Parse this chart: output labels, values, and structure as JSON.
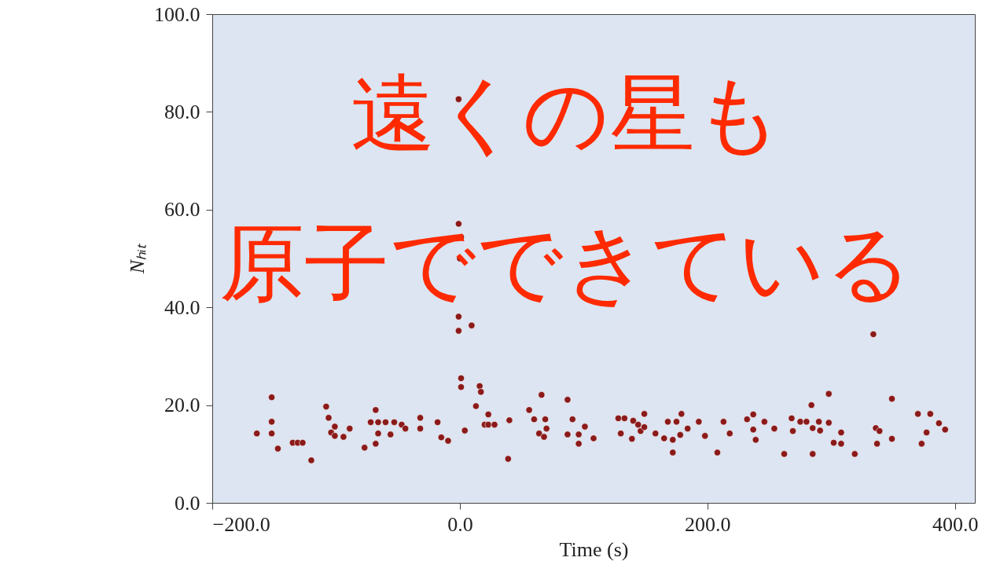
{
  "chart_data": {
    "type": "scatter",
    "xlabel": "Time (s)",
    "ylabel": "Nₕᵢₜ",
    "annotations": [
      "遠くの星も",
      "原子でできている"
    ],
    "xlim": [
      -200,
      416
    ],
    "ylim": [
      0,
      100
    ],
    "xticks": [
      {
        "value": -200,
        "label": "−200.0"
      },
      {
        "value": 0,
        "label": "0.0"
      },
      {
        "value": 200,
        "label": "200.0"
      },
      {
        "value": 400,
        "label": "400.0"
      }
    ],
    "yticks": [
      {
        "value": 0,
        "label": "0.0"
      },
      {
        "value": 20,
        "label": "20.0"
      },
      {
        "value": 40,
        "label": "40.0"
      },
      {
        "value": 60,
        "label": "60.0"
      },
      {
        "value": 80,
        "label": "80.0"
      },
      {
        "value": 100,
        "label": "100.0"
      }
    ],
    "grid": false,
    "marker": "circle",
    "series": [
      {
        "color": "#8b1a1a",
        "x": [
          -164,
          -152,
          -152,
          -152,
          -147,
          -135,
          -131,
          -127,
          -120,
          -108,
          -106,
          -101,
          -104,
          -101,
          -94,
          -89,
          -77,
          -68,
          -68,
          -72,
          -66,
          -60,
          -53,
          -47,
          -66,
          -56,
          -44,
          -32,
          -32,
          -18,
          -15,
          -9.5,
          -1,
          -1,
          1,
          0,
          -1,
          9.5,
          -1,
          1,
          1,
          16,
          17,
          13,
          23,
          20,
          23,
          28,
          4,
          40,
          39,
          56,
          66,
          60,
          69,
          70,
          64,
          68,
          87,
          91,
          101,
          87,
          96,
          96,
          108,
          128,
          133,
          130,
          139,
          140,
          144,
          146,
          149,
          149,
          158,
          165,
          172,
          172,
          168,
          175,
          179,
          178,
          184,
          193,
          198,
          208,
          213,
          218,
          232,
          237,
          237,
          239,
          246,
          254,
          262,
          268,
          269,
          275,
          280,
          284,
          285,
          285,
          290,
          291,
          298,
          298,
          302,
          308,
          308,
          319,
          334,
          336,
          339,
          337,
          349,
          349,
          370,
          380,
          377,
          373,
          387,
          392
        ],
        "values": [
          14.2,
          21.6,
          16.6,
          14.2,
          11.1,
          12.3,
          12.3,
          12.3,
          8.7,
          19.7,
          17.4,
          15.6,
          14.4,
          13.7,
          13.5,
          15.2,
          11.3,
          12.1,
          19.0,
          16.5,
          16.5,
          16.5,
          16.5,
          16.0,
          14.2,
          14.0,
          15.2,
          17.4,
          15.2,
          16.5,
          13.4,
          12.7,
          82.6,
          57.1,
          54.4,
          50.0,
          38.1,
          36.3,
          35.2,
          25.5,
          23.7,
          23.9,
          22.7,
          19.8,
          18.1,
          16.0,
          16.0,
          16.0,
          14.8,
          16.9,
          9.0,
          19.0,
          22.1,
          17.1,
          17.1,
          15.2,
          14.2,
          13.5,
          21.1,
          17.1,
          15.6,
          14.0,
          14.0,
          12.1,
          13.2,
          17.3,
          17.3,
          14.2,
          13.1,
          16.8,
          16.0,
          14.7,
          18.2,
          15.5,
          14.2,
          13.2,
          12.9,
          10.3,
          16.6,
          16.6,
          18.2,
          13.9,
          15.2,
          16.6,
          13.7,
          10.3,
          16.6,
          14.2,
          17.1,
          18.1,
          15.0,
          12.9,
          16.6,
          15.2,
          10.0,
          17.3,
          14.7,
          16.6,
          16.6,
          20.0,
          10.0,
          15.3,
          16.6,
          14.8,
          22.3,
          16.4,
          12.3,
          12.1,
          14.4,
          10.0,
          34.5,
          15.3,
          14.7,
          12.1,
          21.3,
          13.1,
          18.2,
          18.2,
          14.4,
          12.1,
          16.3,
          15.0
        ]
      }
    ]
  }
}
